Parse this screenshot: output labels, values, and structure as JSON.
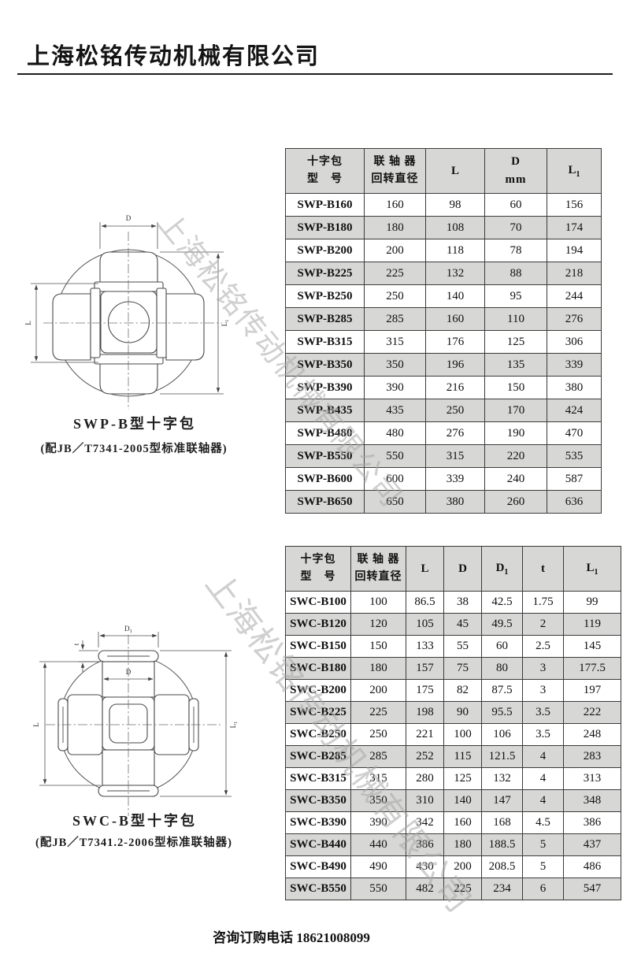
{
  "header": {
    "company": "上海松铭传动机械有限公司"
  },
  "watermark": {
    "text": "上海松铭传动机械有限公司"
  },
  "footer": {
    "phone_line": "咨询订购电话 18621008099"
  },
  "diagram1": {
    "caption": "SWP-B型十字包",
    "subcaption": "(配JB／T7341-2005型标准联轴器)",
    "dim_d": "D",
    "dim_l": "L",
    "dim_l1_main": "L",
    "dim_l1_sub": "1"
  },
  "diagram2": {
    "caption": "SWC-B型十字包",
    "subcaption": "(配JB／T7341.2-2006型标准联轴器)",
    "dim_d": "D",
    "dim_t": "t",
    "dim_l": "L",
    "dim_d1_main": "D",
    "dim_d1_sub": "1",
    "dim_l1_main": "L",
    "dim_l1_sub": "1"
  },
  "table1": {
    "header": {
      "col1_line1": "十字包",
      "col1_line2": "型　号",
      "col2_line1": "联 轴 器",
      "col2_line2": "回转直径",
      "col3": "L",
      "col4_line1": "D",
      "col4_line2": "mm",
      "col5_main": "L",
      "col5_sub": "1"
    },
    "rows": [
      [
        "SWP-B160",
        "160",
        "98",
        "60",
        "156"
      ],
      [
        "SWP-B180",
        "180",
        "108",
        "70",
        "174"
      ],
      [
        "SWP-B200",
        "200",
        "118",
        "78",
        "194"
      ],
      [
        "SWP-B225",
        "225",
        "132",
        "88",
        "218"
      ],
      [
        "SWP-B250",
        "250",
        "140",
        "95",
        "244"
      ],
      [
        "SWP-B285",
        "285",
        "160",
        "110",
        "276"
      ],
      [
        "SWP-B315",
        "315",
        "176",
        "125",
        "306"
      ],
      [
        "SWP-B350",
        "350",
        "196",
        "135",
        "339"
      ],
      [
        "SWP-B390",
        "390",
        "216",
        "150",
        "380"
      ],
      [
        "SWP-B435",
        "435",
        "250",
        "170",
        "424"
      ],
      [
        "SWP-B480",
        "480",
        "276",
        "190",
        "470"
      ],
      [
        "SWP-B550",
        "550",
        "315",
        "220",
        "535"
      ],
      [
        "SWP-B600",
        "600",
        "339",
        "240",
        "587"
      ],
      [
        "SWP-B650",
        "650",
        "380",
        "260",
        "636"
      ]
    ]
  },
  "table2": {
    "header": {
      "col1_line1": "十字包",
      "col1_line2": "型　号",
      "col2_line1": "联 轴 器",
      "col2_line2": "回转直径",
      "col3": "L",
      "col4": "D",
      "col5_main": "D",
      "col5_sub": "1",
      "col6": "t",
      "col7_main": "L",
      "col7_sub": "1"
    },
    "rows": [
      [
        "SWC-B100",
        "100",
        "86.5",
        "38",
        "42.5",
        "1.75",
        "99"
      ],
      [
        "SWC-B120",
        "120",
        "105",
        "45",
        "49.5",
        "2",
        "119"
      ],
      [
        "SWC-B150",
        "150",
        "133",
        "55",
        "60",
        "2.5",
        "145"
      ],
      [
        "SWC-B180",
        "180",
        "157",
        "75",
        "80",
        "3",
        "177.5"
      ],
      [
        "SWC-B200",
        "200",
        "175",
        "82",
        "87.5",
        "3",
        "197"
      ],
      [
        "SWC-B225",
        "225",
        "198",
        "90",
        "95.5",
        "3.5",
        "222"
      ],
      [
        "SWC-B250",
        "250",
        "221",
        "100",
        "106",
        "3.5",
        "248"
      ],
      [
        "SWC-B285",
        "285",
        "252",
        "115",
        "121.5",
        "4",
        "283"
      ],
      [
        "SWC-B315",
        "315",
        "280",
        "125",
        "132",
        "4",
        "313"
      ],
      [
        "SWC-B350",
        "350",
        "310",
        "140",
        "147",
        "4",
        "348"
      ],
      [
        "SWC-B390",
        "390",
        "342",
        "160",
        "168",
        "4.5",
        "386"
      ],
      [
        "SWC-B440",
        "440",
        "386",
        "180",
        "188.5",
        "5",
        "437"
      ],
      [
        "SWC-B490",
        "490",
        "430",
        "200",
        "208.5",
        "5",
        "486"
      ],
      [
        "SWC-B550",
        "550",
        "482",
        "225",
        "234",
        "6",
        "547"
      ]
    ]
  }
}
